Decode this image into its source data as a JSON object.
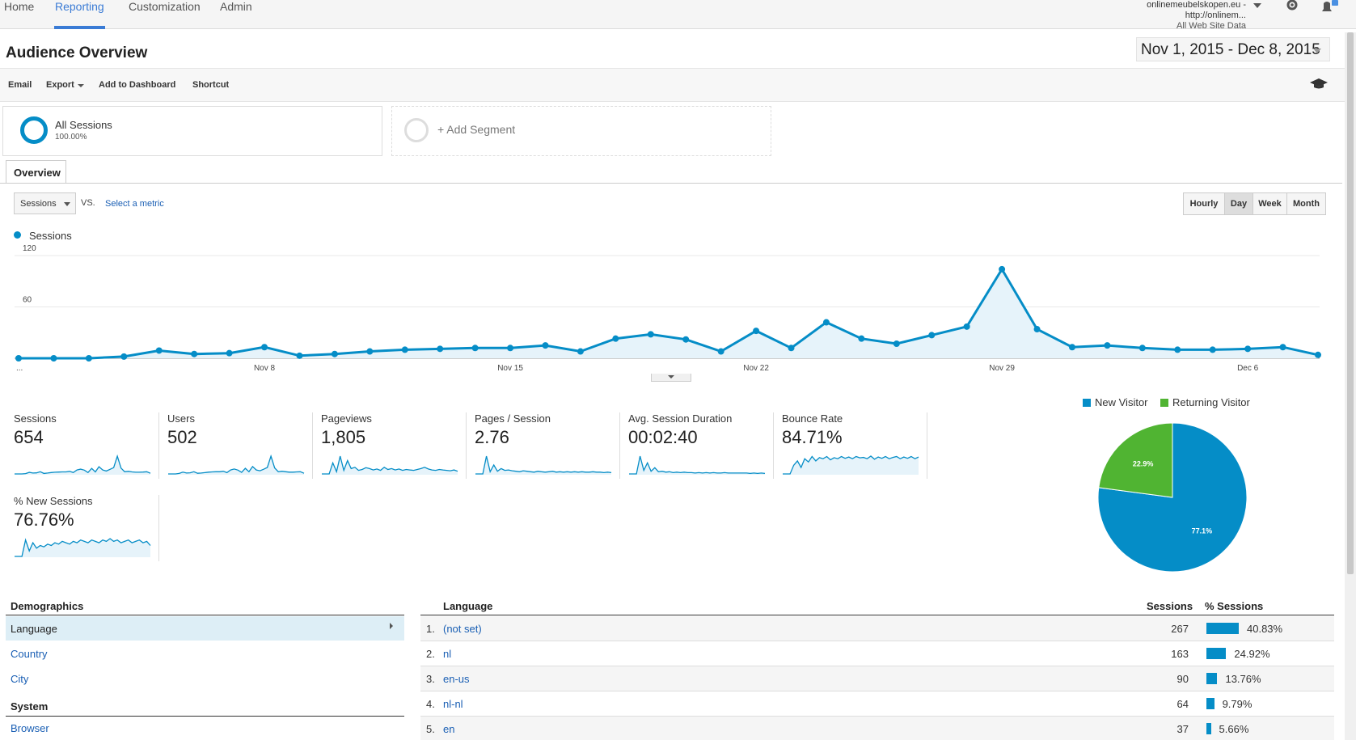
{
  "nav": {
    "tabs": [
      {
        "label": "Home",
        "active": false
      },
      {
        "label": "Reporting",
        "active": true
      },
      {
        "label": "Customization",
        "active": false
      },
      {
        "label": "Admin",
        "active": false
      }
    ],
    "account": "onlinemeubelskopen.eu - http://onlinem...",
    "property": "All Web Site Data",
    "icons": [
      "gear-icon",
      "bell-icon"
    ]
  },
  "header": {
    "title": "Audience Overview",
    "date_range": "Nov 1, 2015 - Dec 8, 2015"
  },
  "toolbar": {
    "email": "Email",
    "export": "Export",
    "add_to_dashboard": "Add to Dashboard",
    "shortcut": "Shortcut",
    "icon": "graduation-cap-icon"
  },
  "segments": {
    "all_sessions": "All Sessions",
    "all_sessions_pct": "100.00%",
    "add_segment": "+ Add Segment"
  },
  "tabs": {
    "overview": "Overview"
  },
  "chart_controls": {
    "metric": "Sessions",
    "vs": "VS.",
    "select_metric": "Select a metric",
    "granularity": [
      {
        "label": "Hourly",
        "active": false
      },
      {
        "label": "Day",
        "active": true
      },
      {
        "label": "Week",
        "active": false
      },
      {
        "label": "Month",
        "active": false
      }
    ]
  },
  "chart_data": {
    "type": "line",
    "title": "",
    "series": [
      {
        "name": "Sessions",
        "color": "#058dc7",
        "values": [
          0,
          0,
          0,
          2,
          9,
          5,
          6,
          13,
          3,
          5,
          8,
          10,
          11,
          12,
          12,
          15,
          8,
          23,
          28,
          22,
          8,
          32,
          12,
          42,
          23,
          17,
          27,
          37,
          104,
          34,
          13,
          15,
          12,
          10,
          10,
          11,
          13,
          4
        ]
      }
    ],
    "x_tick_labels": [
      "...",
      "Nov 8",
      "Nov 15",
      "Nov 22",
      "Nov 29",
      "Dec 6"
    ],
    "x_tick_index": [
      0,
      7,
      14,
      21,
      28,
      35
    ],
    "y_ticks": [
      60,
      120
    ],
    "ylim": [
      0,
      120
    ],
    "grid": true,
    "legend": "top-left"
  },
  "scorecards": [
    {
      "label": "Sessions",
      "value": "654",
      "spark": [
        0,
        0,
        0,
        2,
        9,
        5,
        6,
        13,
        3,
        5,
        8,
        10,
        11,
        12,
        12,
        15,
        8,
        23,
        28,
        22,
        8,
        32,
        12,
        42,
        23,
        17,
        27,
        37,
        104,
        34,
        13,
        15,
        12,
        10,
        10,
        11,
        13,
        4
      ]
    },
    {
      "label": "Users",
      "value": "502",
      "spark": [
        0,
        0,
        0,
        2,
        8,
        4,
        5,
        10,
        3,
        4,
        6,
        8,
        9,
        10,
        10,
        12,
        6,
        18,
        22,
        17,
        7,
        25,
        10,
        33,
        18,
        14,
        21,
        29,
        80,
        27,
        10,
        12,
        10,
        8,
        8,
        9,
        10,
        3
      ]
    },
    {
      "label": "Pageviews",
      "value": "1,805",
      "spark": [
        0,
        0,
        0,
        25,
        5,
        40,
        8,
        30,
        12,
        15,
        8,
        10,
        14,
        12,
        9,
        11,
        8,
        15,
        10,
        12,
        9,
        11,
        8,
        10,
        9,
        8,
        10,
        12,
        15,
        11,
        9,
        8,
        10,
        9,
        8,
        7,
        9,
        6
      ]
    },
    {
      "label": "Pages / Session",
      "value": "2.76",
      "spark": [
        0,
        0,
        0,
        40,
        5,
        20,
        6,
        12,
        8,
        9,
        7,
        6,
        5,
        7,
        6,
        5,
        4,
        6,
        5,
        4,
        5,
        6,
        4,
        5,
        4,
        5,
        4,
        5,
        4,
        5,
        4,
        4,
        5,
        4,
        4,
        3,
        4,
        3
      ]
    },
    {
      "label": "Avg. Session Duration",
      "value": "00:02:40",
      "spark": [
        0,
        0,
        0,
        40,
        8,
        25,
        6,
        14,
        5,
        6,
        4,
        5,
        3,
        4,
        3,
        4,
        3,
        3,
        2,
        3,
        2,
        3,
        2,
        3,
        2,
        2,
        3,
        2,
        2,
        2,
        2,
        2,
        2,
        1,
        2,
        1,
        2,
        1
      ]
    },
    {
      "label": "Bounce Rate",
      "value": "84.71%",
      "spark": [
        0,
        0,
        0,
        40,
        60,
        30,
        70,
        55,
        80,
        60,
        75,
        70,
        80,
        65,
        75,
        70,
        80,
        72,
        78,
        70,
        80,
        74,
        76,
        70,
        82,
        68,
        78,
        72,
        80,
        70,
        76,
        80,
        70,
        78,
        72,
        80,
        70,
        78
      ]
    },
    {
      "label": "% New Sessions",
      "value": "76.76%",
      "spark": [
        0,
        0,
        0,
        60,
        20,
        50,
        30,
        40,
        35,
        45,
        40,
        50,
        45,
        55,
        50,
        45,
        55,
        50,
        60,
        55,
        50,
        60,
        55,
        50,
        60,
        55,
        65,
        55,
        60,
        50,
        55,
        60,
        50,
        55,
        60,
        50,
        55,
        40
      ]
    }
  ],
  "pie": {
    "legend_new": "New Visitor",
    "legend_returning": "Returning Visitor",
    "slices": [
      {
        "name": "New Visitor",
        "value": 77.1,
        "label": "77.1%",
        "color": "#058dc7"
      },
      {
        "name": "Returning Visitor",
        "value": 22.9,
        "label": "22.9%",
        "color": "#50b432"
      }
    ]
  },
  "demographics": {
    "heading": "Demographics",
    "items": [
      {
        "label": "Language",
        "active": true
      },
      {
        "label": "Country",
        "active": false
      },
      {
        "label": "City",
        "active": false
      }
    ],
    "system_heading": "System",
    "system_items": [
      {
        "label": "Browser"
      }
    ]
  },
  "language_table": {
    "col_language": "Language",
    "col_sessions": "Sessions",
    "col_pct": "% Sessions",
    "rows": [
      {
        "num": "1.",
        "language": "(not set)",
        "sessions": "267",
        "pct": "40.83%",
        "share": 40.83
      },
      {
        "num": "2.",
        "language": "nl",
        "sessions": "163",
        "pct": "24.92%",
        "share": 24.92
      },
      {
        "num": "3.",
        "language": "en-us",
        "sessions": "90",
        "pct": "13.76%",
        "share": 13.76
      },
      {
        "num": "4.",
        "language": "nl-nl",
        "sessions": "64",
        "pct": "9.79%",
        "share": 9.79
      },
      {
        "num": "5.",
        "language": "en",
        "sessions": "37",
        "pct": "5.66%",
        "share": 5.66
      }
    ]
  }
}
